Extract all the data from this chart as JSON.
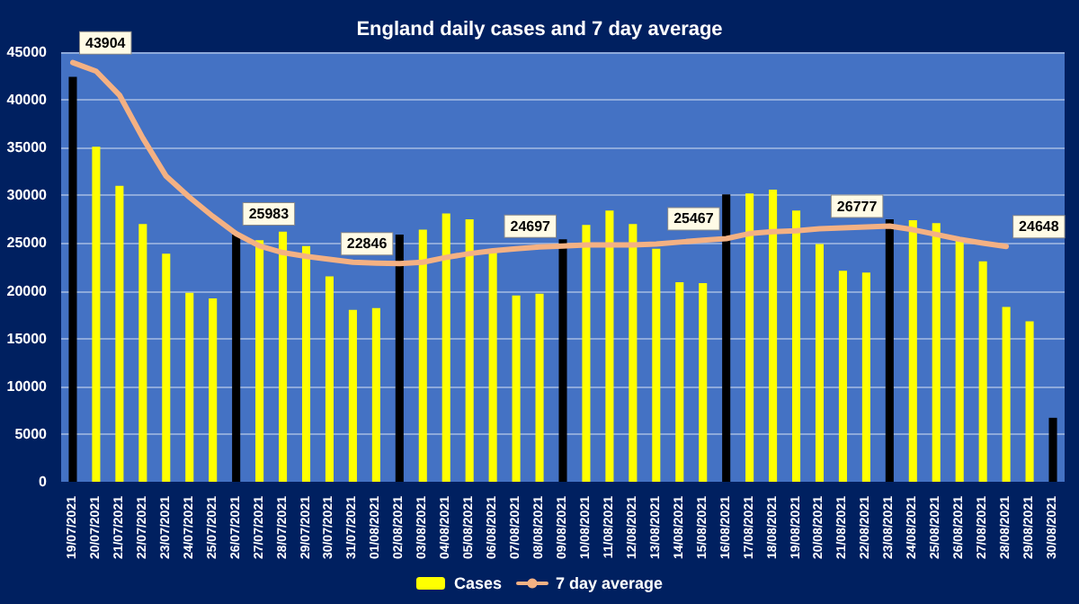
{
  "chart_data": {
    "type": "bar",
    "title": "England daily cases and 7 day average",
    "categories": [
      "19/07/2021",
      "20/07/2021",
      "21/07/2021",
      "22/07/2021",
      "23/07/2021",
      "24/07/2021",
      "25/07/2021",
      "26/07/2021",
      "27/07/2021",
      "28/07/2021",
      "29/07/2021",
      "30/07/2021",
      "31/07/2021",
      "01/08/2021",
      "02/08/2021",
      "03/08/2021",
      "04/08/2021",
      "05/08/2021",
      "06/08/2021",
      "07/08/2021",
      "08/08/2021",
      "09/08/2021",
      "10/08/2021",
      "11/08/2021",
      "12/08/2021",
      "13/08/2021",
      "14/08/2021",
      "15/08/2021",
      "16/08/2021",
      "17/08/2021",
      "18/08/2021",
      "19/08/2021",
      "20/08/2021",
      "21/08/2021",
      "22/08/2021",
      "23/08/2021",
      "24/08/2021",
      "25/08/2021",
      "26/08/2021",
      "27/08/2021",
      "28/08/2021",
      "29/08/2021",
      "30/08/2021"
    ],
    "series": [
      {
        "name": "Cases",
        "color": "#ffff00",
        "values": [
          42400,
          35100,
          31000,
          27000,
          23900,
          19800,
          19200,
          25900,
          25300,
          26200,
          24700,
          21500,
          18000,
          18200,
          25900,
          26400,
          28100,
          27500,
          24000,
          19500,
          19700,
          25400,
          26900,
          28400,
          27000,
          24400,
          20900,
          20800,
          30100,
          30200,
          30600,
          28400,
          24900,
          22100,
          21900,
          27500,
          27400,
          27100,
          25400,
          23100,
          18300,
          16800,
          6700
        ],
        "colors": [
          "#000000",
          "#ffff00",
          "#ffff00",
          "#ffff00",
          "#ffff00",
          "#ffff00",
          "#ffff00",
          "#000000",
          "#ffff00",
          "#ffff00",
          "#ffff00",
          "#ffff00",
          "#ffff00",
          "#ffff00",
          "#000000",
          "#ffff00",
          "#ffff00",
          "#ffff00",
          "#ffff00",
          "#ffff00",
          "#ffff00",
          "#000000",
          "#ffff00",
          "#ffff00",
          "#ffff00",
          "#ffff00",
          "#ffff00",
          "#ffff00",
          "#000000",
          "#ffff00",
          "#ffff00",
          "#ffff00",
          "#ffff00",
          "#ffff00",
          "#ffff00",
          "#000000",
          "#ffff00",
          "#ffff00",
          "#ffff00",
          "#ffff00",
          "#ffff00",
          "#ffff00",
          "#000000"
        ]
      },
      {
        "name": "7 day average",
        "type": "line",
        "color": "#f4b183",
        "values": [
          43904,
          43000,
          40500,
          36000,
          32000,
          29800,
          27800,
          25983,
          24700,
          24000,
          23600,
          23300,
          23000,
          22900,
          22846,
          23000,
          23500,
          23900,
          24200,
          24400,
          24600,
          24697,
          24800,
          24800,
          24800,
          24900,
          25100,
          25300,
          25467,
          26000,
          26200,
          26300,
          26500,
          26600,
          26700,
          26777,
          26400,
          25900,
          25400,
          25000,
          24648,
          null,
          null
        ],
        "value_labels": [
          "43904",
          null,
          null,
          null,
          null,
          null,
          null,
          "25983",
          null,
          null,
          null,
          null,
          null,
          null,
          "22846",
          null,
          null,
          null,
          null,
          null,
          null,
          "24697",
          null,
          null,
          null,
          null,
          null,
          null,
          "25467",
          null,
          null,
          null,
          null,
          null,
          null,
          "26777",
          null,
          null,
          null,
          null,
          "24648",
          null,
          null
        ]
      }
    ],
    "ylim": [
      0,
      45000
    ],
    "yticks": [
      0,
      5000,
      10000,
      15000,
      20000,
      25000,
      30000,
      35000,
      40000,
      45000
    ],
    "grid": "y",
    "legend": "bottom",
    "marker": "none",
    "line_style": "solid"
  }
}
